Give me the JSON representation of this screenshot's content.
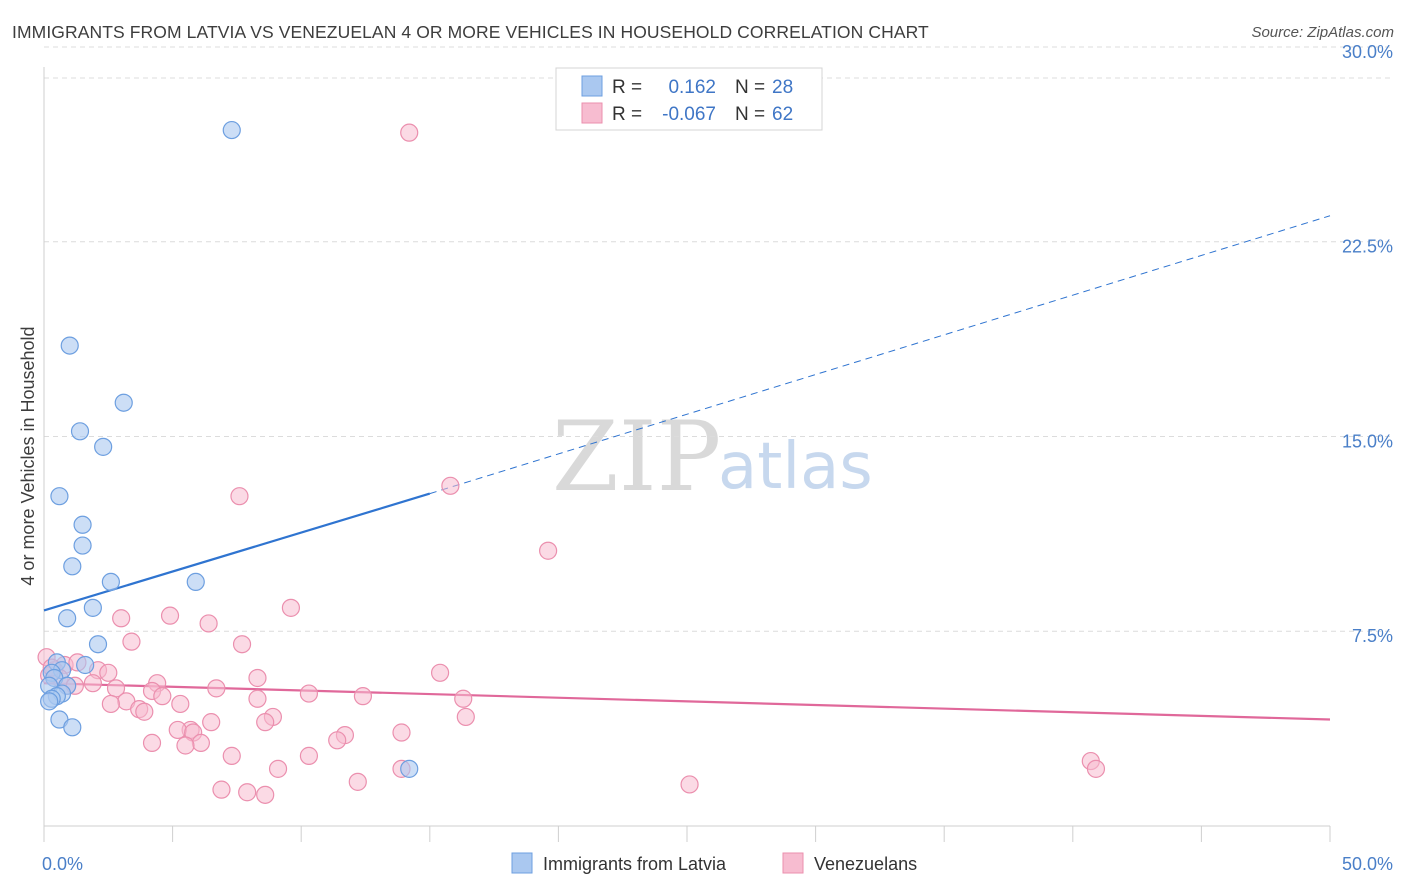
{
  "title": "IMMIGRANTS FROM LATVIA VS VENEZUELAN 4 OR MORE VEHICLES IN HOUSEHOLD CORRELATION CHART",
  "source": "Source: ZipAtlas.com",
  "watermark": {
    "zip": "ZIP",
    "atlas": "atlas"
  },
  "colors": {
    "blue_fill": "#aac8f0",
    "blue_stroke": "#6d9fe0",
    "blue_line": "#2f74d0",
    "pink_fill": "#f7bcd0",
    "pink_stroke": "#eb8fae",
    "pink_line": "#e0689a",
    "grid": "#dcdcdc",
    "axis_text": "#4a7fc8"
  },
  "legend": {
    "row1": {
      "r_label": "R =",
      "r_value": "0.162",
      "n_label": "N =",
      "n_value": "28"
    },
    "row2": {
      "r_label": "R =",
      "r_value": "-0.067",
      "n_label": "N =",
      "n_value": "62"
    }
  },
  "chart_data": {
    "type": "scatter",
    "title": "IMMIGRANTS FROM LATVIA VS VENEZUELAN 4 OR MORE VEHICLES IN HOUSEHOLD CORRELATION CHART",
    "xlabel": "",
    "ylabel": "4 or more Vehicles in Household",
    "xlim": [
      0,
      50
    ],
    "ylim": [
      0,
      31
    ],
    "x_tick_labels": [
      {
        "value": 0,
        "label": "0.0%"
      },
      {
        "value": 50,
        "label": "50.0%"
      }
    ],
    "y_tick_labels": [
      {
        "value": 7.5,
        "label": "7.5%"
      },
      {
        "value": 15.0,
        "label": "15.0%"
      },
      {
        "value": 22.5,
        "label": "22.5%"
      },
      {
        "value": 30.0,
        "label": "30.0%"
      }
    ],
    "x_minor_ticks": [
      0,
      5,
      10,
      15,
      20,
      25,
      30,
      35,
      40,
      45,
      50
    ],
    "series": [
      {
        "name": "Immigrants from Latvia",
        "color": "blue",
        "r": 0.162,
        "n": 28,
        "trend": {
          "x0": 0,
          "y0": 8.3,
          "x1": 15,
          "y1": 12.8,
          "dash_x1": 50,
          "dash_y1": 23.5
        },
        "points": [
          [
            7.3,
            26.8
          ],
          [
            1.0,
            18.5
          ],
          [
            3.1,
            16.3
          ],
          [
            1.4,
            15.2
          ],
          [
            2.3,
            14.6
          ],
          [
            0.6,
            12.7
          ],
          [
            1.5,
            11.6
          ],
          [
            1.5,
            10.8
          ],
          [
            1.1,
            10.0
          ],
          [
            2.6,
            9.4
          ],
          [
            5.9,
            9.4
          ],
          [
            1.9,
            8.4
          ],
          [
            0.9,
            8.0
          ],
          [
            2.1,
            7.0
          ],
          [
            0.5,
            6.3
          ],
          [
            1.6,
            6.2
          ],
          [
            0.7,
            6.0
          ],
          [
            0.3,
            5.9
          ],
          [
            0.4,
            5.7
          ],
          [
            0.2,
            5.4
          ],
          [
            0.9,
            5.4
          ],
          [
            0.7,
            5.1
          ],
          [
            0.5,
            5.0
          ],
          [
            0.3,
            4.9
          ],
          [
            0.2,
            4.8
          ],
          [
            0.6,
            4.1
          ],
          [
            1.1,
            3.8
          ],
          [
            14.2,
            2.2
          ]
        ]
      },
      {
        "name": "Venezuelans",
        "color": "pink",
        "r": -0.067,
        "n": 62,
        "trend": {
          "x0": 0,
          "y0": 5.5,
          "x1": 50,
          "y1": 4.1
        },
        "points": [
          [
            14.2,
            26.7
          ],
          [
            15.8,
            13.1
          ],
          [
            7.6,
            12.7
          ],
          [
            19.6,
            10.6
          ],
          [
            9.6,
            8.4
          ],
          [
            4.9,
            8.1
          ],
          [
            3.0,
            8.0
          ],
          [
            6.4,
            7.8
          ],
          [
            3.4,
            7.1
          ],
          [
            7.7,
            7.0
          ],
          [
            0.1,
            6.5
          ],
          [
            0.8,
            6.2
          ],
          [
            1.3,
            6.3
          ],
          [
            2.1,
            6.0
          ],
          [
            0.4,
            6.0
          ],
          [
            0.6,
            5.7
          ],
          [
            8.3,
            5.7
          ],
          [
            15.4,
            5.9
          ],
          [
            4.4,
            5.5
          ],
          [
            1.9,
            5.5
          ],
          [
            0.9,
            5.4
          ],
          [
            2.8,
            5.3
          ],
          [
            6.7,
            5.3
          ],
          [
            4.2,
            5.2
          ],
          [
            4.6,
            5.0
          ],
          [
            10.3,
            5.1
          ],
          [
            12.4,
            5.0
          ],
          [
            8.3,
            4.9
          ],
          [
            16.3,
            4.9
          ],
          [
            3.2,
            4.8
          ],
          [
            2.6,
            4.7
          ],
          [
            5.3,
            4.7
          ],
          [
            3.7,
            4.5
          ],
          [
            3.9,
            4.4
          ],
          [
            8.9,
            4.2
          ],
          [
            16.4,
            4.2
          ],
          [
            6.5,
            4.0
          ],
          [
            8.6,
            4.0
          ],
          [
            5.7,
            3.7
          ],
          [
            5.2,
            3.7
          ],
          [
            5.8,
            3.6
          ],
          [
            13.9,
            3.6
          ],
          [
            11.7,
            3.5
          ],
          [
            11.4,
            3.3
          ],
          [
            4.2,
            3.2
          ],
          [
            6.1,
            3.2
          ],
          [
            5.5,
            3.1
          ],
          [
            7.3,
            2.7
          ],
          [
            10.3,
            2.7
          ],
          [
            9.1,
            2.2
          ],
          [
            13.9,
            2.2
          ],
          [
            40.7,
            2.5
          ],
          [
            40.9,
            2.2
          ],
          [
            12.2,
            1.7
          ],
          [
            25.1,
            1.6
          ],
          [
            6.9,
            1.4
          ],
          [
            7.9,
            1.3
          ],
          [
            8.6,
            1.2
          ],
          [
            0.2,
            5.8
          ],
          [
            1.2,
            5.4
          ],
          [
            0.3,
            6.1
          ],
          [
            2.5,
            5.9
          ]
        ]
      }
    ]
  }
}
